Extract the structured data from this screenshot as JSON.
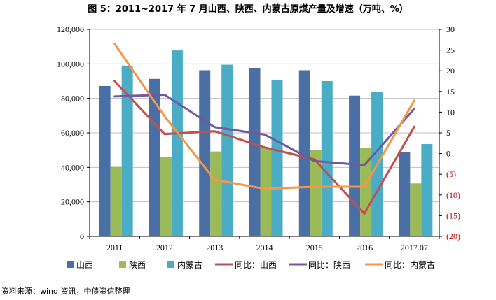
{
  "title": "图 5：2011~2017 年 7 月山西、陕西、内蒙古原煤产量及增速（万吨、%）",
  "source": "资料来源：wind 资讯，中债资信整理",
  "chart_data": {
    "type": "bar",
    "categories": [
      "2011",
      "2012",
      "2013",
      "2014",
      "2015",
      "2016",
      "2017.07"
    ],
    "y_left": {
      "range": [
        0,
        120000
      ],
      "ticks": [
        0,
        20000,
        40000,
        60000,
        80000,
        100000,
        120000
      ],
      "tick_labels": [
        "0",
        "20,000",
        "40,000",
        "60,000",
        "80,000",
        "100,000",
        "120,000"
      ]
    },
    "y_right": {
      "range": [
        -20,
        30
      ],
      "ticks": [
        -20,
        -15,
        -10,
        -5,
        0,
        5,
        10,
        15,
        20,
        25,
        30
      ],
      "tick_labels": [
        "(20)",
        "(15)",
        "(10)",
        "(5)",
        "0",
        "5",
        "10",
        "15",
        "20",
        "25",
        "30"
      ]
    },
    "series": [
      {
        "name": "山西",
        "kind": "bar",
        "axis": "left",
        "color": "#4a6fa5",
        "values": [
          87200,
          91300,
          96300,
          97700,
          96300,
          81600,
          49000
        ]
      },
      {
        "name": "陕西",
        "kind": "bar",
        "axis": "left",
        "color": "#9bbb59",
        "values": [
          40300,
          46200,
          49200,
          51500,
          50200,
          51300,
          30700
        ]
      },
      {
        "name": "内蒙古",
        "kind": "bar",
        "axis": "left",
        "color": "#4bacc6",
        "values": [
          99000,
          107800,
          99500,
          90800,
          90000,
          83800,
          53500
        ]
      },
      {
        "name": "同比：山西",
        "kind": "line",
        "axis": "right",
        "color": "#c0504d",
        "values": [
          17.5,
          4.7,
          5.4,
          1.5,
          -1.4,
          -14.5,
          6.5
        ]
      },
      {
        "name": "同比：陕西",
        "kind": "line",
        "axis": "right",
        "color": "#7158a0",
        "values": [
          13.8,
          14.2,
          6.4,
          4.6,
          -1.8,
          -2.8,
          10.8
        ]
      },
      {
        "name": "同比：内蒙古",
        "kind": "line",
        "axis": "right",
        "color": "#f79646",
        "values": [
          26.5,
          9.0,
          -6.3,
          -8.5,
          -8.0,
          -8.0,
          12.8
        ]
      }
    ],
    "legend_position": "bottom",
    "grid": true
  }
}
